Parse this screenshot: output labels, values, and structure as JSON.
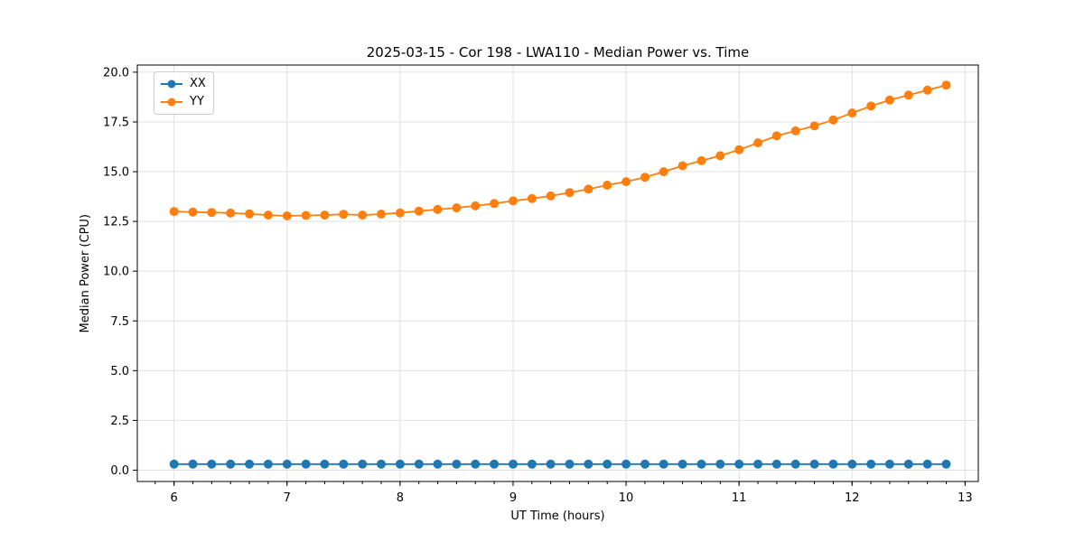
{
  "figure": {
    "title": "2025-03-15 - Cor 198 - LWA110 - Median Power vs. Time",
    "xlabel": "UT Time (hours)",
    "ylabel": "Median Power (CPU)",
    "background_color": "#ffffff",
    "grid_color": "#e0e0e0",
    "spine_color": "#000000"
  },
  "legend": {
    "position": "upper-left",
    "entries": [
      {
        "label": "XX",
        "color": "#1f77b4"
      },
      {
        "label": "YY",
        "color": "#ff7f0e"
      }
    ]
  },
  "chart_data": {
    "type": "line",
    "title": "2025-03-15 - Cor 198 - LWA110 - Median Power vs. Time",
    "xlabel": "UT Time (hours)",
    "ylabel": "Median Power (CPU)",
    "xlim": [
      5.675,
      13.117
    ],
    "ylim": [
      -0.57,
      20.36
    ],
    "grid": true,
    "legend_position": "upper-left",
    "xtick_values": [
      6,
      7,
      8,
      9,
      10,
      11,
      12,
      13
    ],
    "xtick_labels": [
      "6",
      "7",
      "8",
      "9",
      "10",
      "11",
      "12",
      "13"
    ],
    "x_minor_step": 0.166667,
    "ytick_values": [
      0,
      2.5,
      5,
      7.5,
      10,
      12.5,
      15,
      17.5,
      20
    ],
    "ytick_labels": [
      "0.0",
      "2.5",
      "5.0",
      "7.5",
      "10.0",
      "12.5",
      "15.0",
      "17.5",
      "20.0"
    ],
    "x": [
      6.0,
      6.167,
      6.333,
      6.5,
      6.667,
      6.833,
      7.0,
      7.167,
      7.333,
      7.5,
      7.667,
      7.833,
      8.0,
      8.167,
      8.333,
      8.5,
      8.667,
      8.833,
      9.0,
      9.167,
      9.333,
      9.5,
      9.667,
      9.833,
      10.0,
      10.167,
      10.333,
      10.5,
      10.667,
      10.833,
      11.0,
      11.167,
      11.333,
      11.5,
      11.667,
      11.833,
      12.0,
      12.167,
      12.333,
      12.5,
      12.667,
      12.833
    ],
    "series": [
      {
        "name": "XX",
        "color": "#1f77b4",
        "values": [
          0.3,
          0.3,
          0.3,
          0.3,
          0.3,
          0.3,
          0.3,
          0.3,
          0.3,
          0.3,
          0.3,
          0.3,
          0.3,
          0.3,
          0.3,
          0.3,
          0.3,
          0.3,
          0.3,
          0.3,
          0.3,
          0.3,
          0.3,
          0.3,
          0.3,
          0.3,
          0.3,
          0.3,
          0.3,
          0.3,
          0.3,
          0.3,
          0.3,
          0.3,
          0.3,
          0.3,
          0.3,
          0.3,
          0.3,
          0.3,
          0.3,
          0.3
        ]
      },
      {
        "name": "YY",
        "color": "#ff7f0e",
        "values": [
          13.0,
          12.97,
          12.95,
          12.92,
          12.88,
          12.82,
          12.78,
          12.8,
          12.82,
          12.86,
          12.82,
          12.87,
          12.93,
          13.02,
          13.1,
          13.18,
          13.28,
          13.4,
          13.53,
          13.65,
          13.78,
          13.95,
          14.12,
          14.32,
          14.5,
          14.72,
          15.0,
          15.3,
          15.55,
          15.8,
          16.1,
          16.45,
          16.8,
          17.05,
          17.3,
          17.6,
          17.95,
          18.3,
          18.6,
          18.85,
          19.1,
          19.35
        ]
      }
    ]
  }
}
